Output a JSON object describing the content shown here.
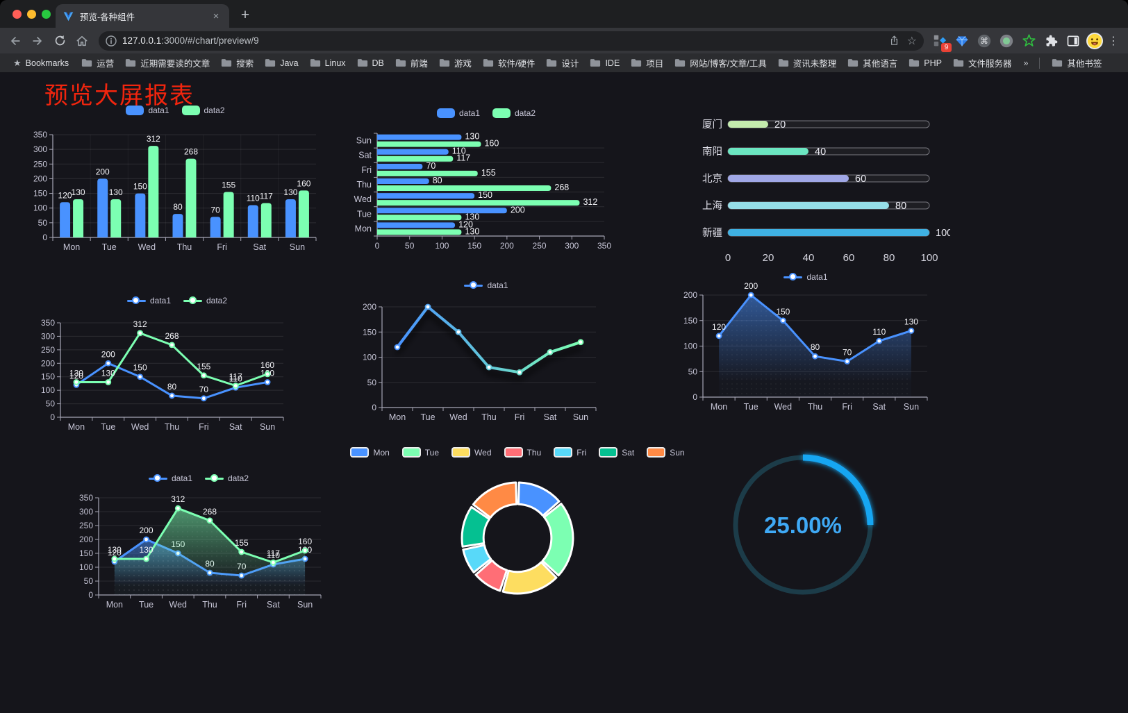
{
  "browser": {
    "tab_title": "预览-各种组件",
    "close_tab": "×",
    "new_tab": "+",
    "url_host": "127.0.0.1",
    "url_rest": ":3000/#/chart/preview/9",
    "bookmarks_label": "Bookmarks",
    "bookmark_folders": [
      "运营",
      "近期需要读的文章",
      "搜索",
      "Java",
      "Linux",
      "DB",
      "前端",
      "游戏",
      "软件/硬件",
      "设计",
      "IDE",
      "项目",
      "网站/博客/文章/工具",
      "资讯未整理",
      "其他语言",
      "PHP",
      "文件服务器"
    ],
    "bookmarks_overflow": "»",
    "other_bookmarks": "其他书签",
    "extension_badge": "9",
    "menu_icon": "⋮"
  },
  "page": {
    "title": "预览大屏报表"
  },
  "chart_data": [
    {
      "id": "grouped-bar",
      "type": "bar",
      "categories": [
        "Mon",
        "Tue",
        "Wed",
        "Thu",
        "Fri",
        "Sat",
        "Sun"
      ],
      "series": [
        {
          "name": "data1",
          "color": "#4992ff",
          "values": [
            120,
            200,
            150,
            80,
            70,
            110,
            130
          ]
        },
        {
          "name": "data2",
          "color": "#7cffb2",
          "values": [
            130,
            130,
            312,
            268,
            155,
            117,
            160
          ]
        }
      ],
      "ylim": [
        0,
        350
      ],
      "yticks": [
        0,
        50,
        100,
        150,
        200,
        250,
        300,
        350
      ],
      "grid": true,
      "legend_position": "top"
    },
    {
      "id": "grouped-hbar",
      "type": "bar-horizontal",
      "categories": [
        "Mon",
        "Tue",
        "Wed",
        "Thu",
        "Fri",
        "Sat",
        "Sun"
      ],
      "display_order_top_to_bottom": [
        "Sun",
        "Sat",
        "Fri",
        "Thu",
        "Wed",
        "Tue",
        "Mon"
      ],
      "series": [
        {
          "name": "data1",
          "color": "#4992ff",
          "values": [
            120,
            200,
            150,
            80,
            70,
            110,
            130
          ]
        },
        {
          "name": "data2",
          "color": "#7cffb2",
          "values": [
            130,
            130,
            312,
            268,
            155,
            117,
            160
          ]
        }
      ],
      "xlim": [
        0,
        350
      ],
      "xticks": [
        0,
        50,
        100,
        150,
        200,
        250,
        300,
        350
      ],
      "grid": true,
      "legend_position": "top"
    },
    {
      "id": "progress-bars",
      "type": "bar-horizontal-progress",
      "items": [
        {
          "label": "厦门",
          "value": 20,
          "color": "#c4ebad"
        },
        {
          "label": "南阳",
          "value": 40,
          "color": "#6be6c1"
        },
        {
          "label": "北京",
          "value": 60,
          "color": "#a0a7e6"
        },
        {
          "label": "上海",
          "value": 80,
          "color": "#96dee8"
        },
        {
          "label": "新疆",
          "value": 100,
          "color": "#3fb1e3"
        }
      ],
      "xlim": [
        0,
        100
      ],
      "xticks": [
        0,
        20,
        40,
        60,
        80,
        100
      ]
    },
    {
      "id": "line-two-series",
      "type": "line",
      "categories": [
        "Mon",
        "Tue",
        "Wed",
        "Thu",
        "Fri",
        "Sat",
        "Sun"
      ],
      "series": [
        {
          "name": "data1",
          "color": "#4992ff",
          "values": [
            120,
            200,
            150,
            80,
            70,
            110,
            130
          ]
        },
        {
          "name": "data2",
          "color": "#7cffb2",
          "values": [
            130,
            130,
            312,
            268,
            155,
            117,
            160
          ]
        }
      ],
      "ylim": [
        0,
        350
      ],
      "yticks": [
        0,
        50,
        100,
        150,
        200,
        250,
        300,
        350
      ],
      "labels": true,
      "area": false,
      "legend_position": "top"
    },
    {
      "id": "line-gradient",
      "type": "line",
      "categories": [
        "Mon",
        "Tue",
        "Wed",
        "Thu",
        "Fri",
        "Sat",
        "Sun"
      ],
      "series": [
        {
          "name": "data1",
          "color": "#4992ff",
          "color_end": "#7cffb2",
          "gradient": true,
          "values": [
            120,
            200,
            150,
            80,
            70,
            110,
            130
          ]
        }
      ],
      "ylim": [
        0,
        200
      ],
      "yticks": [
        0,
        50,
        100,
        150,
        200
      ],
      "labels": false,
      "area": false,
      "shadow": true,
      "legend_position": "top"
    },
    {
      "id": "area-one-series",
      "type": "area",
      "categories": [
        "Mon",
        "Tue",
        "Wed",
        "Thu",
        "Fri",
        "Sat",
        "Sun"
      ],
      "series": [
        {
          "name": "data1",
          "color": "#4992ff",
          "values": [
            120,
            200,
            150,
            80,
            70,
            110,
            130
          ]
        }
      ],
      "ylim": [
        0,
        200
      ],
      "yticks": [
        0,
        50,
        100,
        150,
        200
      ],
      "labels": true,
      "area": true,
      "legend_position": "top"
    },
    {
      "id": "area-two-series",
      "type": "area",
      "categories": [
        "Mon",
        "Tue",
        "Wed",
        "Thu",
        "Fri",
        "Sat",
        "Sun"
      ],
      "series": [
        {
          "name": "data1",
          "color": "#4992ff",
          "values": [
            120,
            200,
            150,
            80,
            70,
            110,
            130
          ]
        },
        {
          "name": "data2",
          "color": "#7cffb2",
          "values": [
            130,
            130,
            312,
            268,
            155,
            117,
            160
          ]
        }
      ],
      "ylim": [
        0,
        350
      ],
      "yticks": [
        0,
        50,
        100,
        150,
        200,
        250,
        300,
        350
      ],
      "labels": true,
      "area": true,
      "legend_position": "top"
    },
    {
      "id": "donut",
      "type": "pie",
      "items": [
        {
          "label": "Mon",
          "value": 120,
          "color": "#4992ff"
        },
        {
          "label": "Tue",
          "value": 200,
          "color": "#7cffb2"
        },
        {
          "label": "Wed",
          "value": 150,
          "color": "#fddd60"
        },
        {
          "label": "Thu",
          "value": 80,
          "color": "#ff6e76"
        },
        {
          "label": "Fri",
          "value": 70,
          "color": "#58d9f9"
        },
        {
          "label": "Sat",
          "value": 110,
          "color": "#05c091"
        },
        {
          "label": "Sun",
          "value": 130,
          "color": "#ff8a45"
        }
      ],
      "inner_radius_ratio": 0.61,
      "border_color": "#ffffff",
      "legend_position": "top"
    },
    {
      "id": "gauge",
      "type": "gauge",
      "value": 25,
      "label": "25.00%",
      "progress_color": "#18a6f2",
      "track_color": "#1c3c49",
      "text_color": "#3fa9f5"
    }
  ]
}
